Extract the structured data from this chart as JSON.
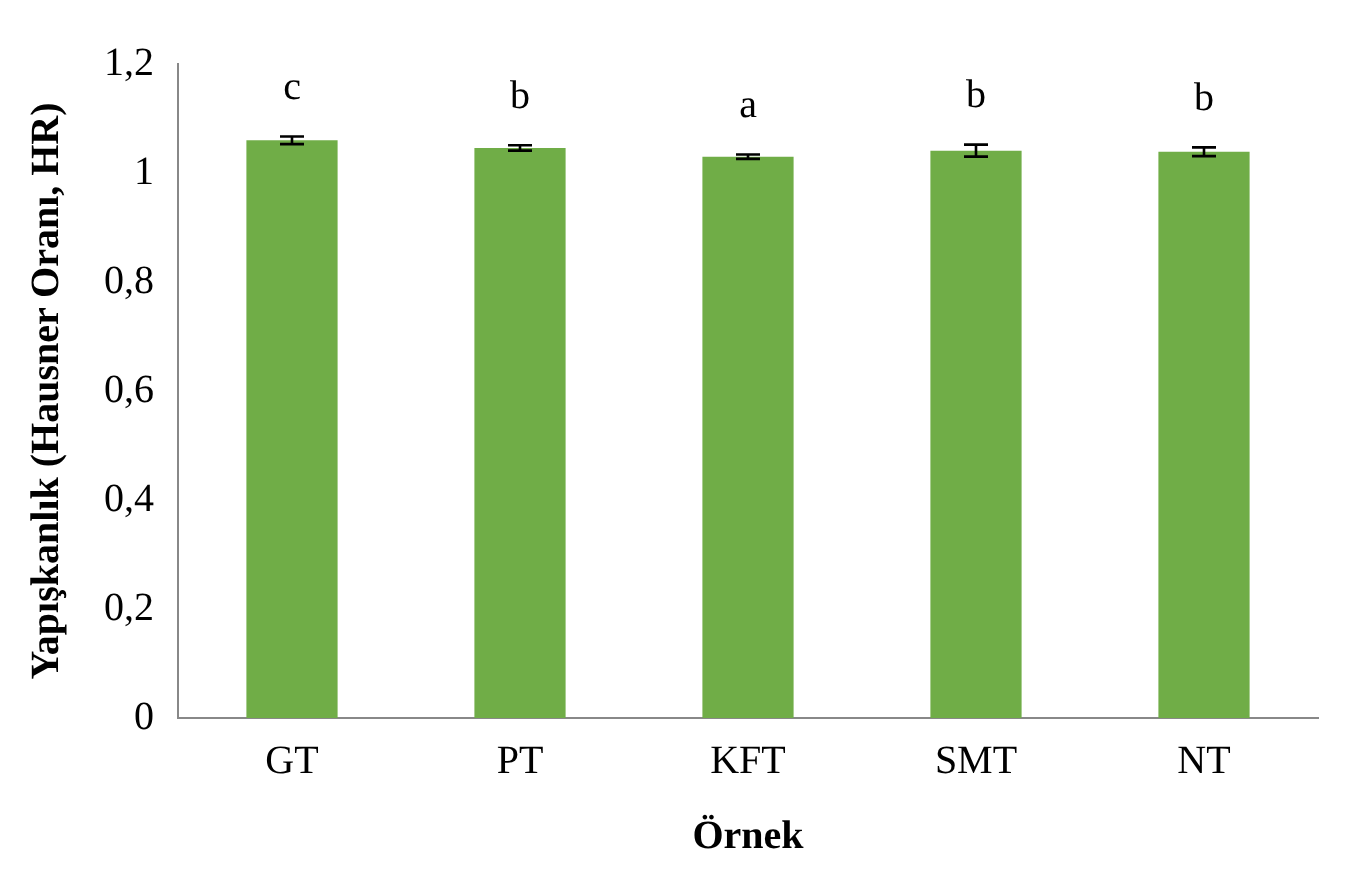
{
  "chart_data": {
    "type": "bar",
    "xlabel": "Örnek",
    "ylabel": "Yapışkanlık (Hausner Oranı, HR)",
    "categories": [
      "GT",
      "PT",
      "KFT",
      "SMT",
      "NT"
    ],
    "values": [
      1.06,
      1.046,
      1.03,
      1.041,
      1.039
    ],
    "errors": [
      0.007,
      0.005,
      0.004,
      0.011,
      0.008
    ],
    "color": "#70ad47",
    "ylim": [
      0,
      1.2
    ],
    "yticks": [
      {
        "value": 0,
        "label": "0"
      },
      {
        "value": 0.2,
        "label": "0,2"
      },
      {
        "value": 0.4,
        "label": "0,4"
      },
      {
        "value": 0.6,
        "label": "0,6"
      },
      {
        "value": 0.8,
        "label": "0,8"
      },
      {
        "value": 1,
        "label": "1"
      },
      {
        "value": 1.2,
        "label": "1,2"
      }
    ],
    "grid": false,
    "legend": false,
    "annotations": [
      "c",
      "b",
      "a",
      "b",
      "b"
    ]
  }
}
